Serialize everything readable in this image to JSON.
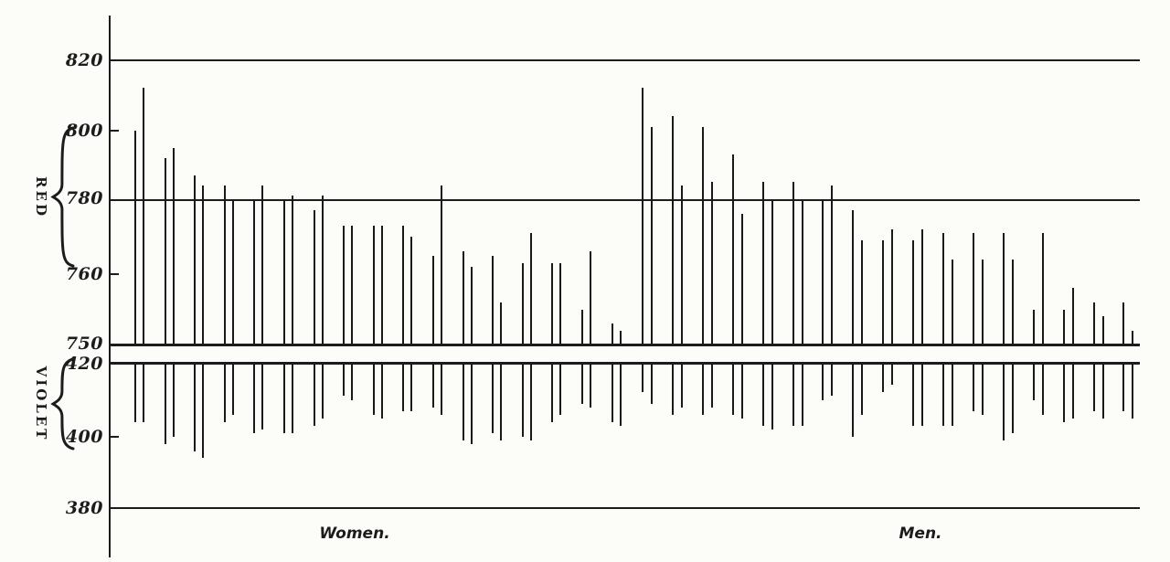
{
  "figure": {
    "background": "#fcfcf9",
    "ink": "#1c1c1c"
  },
  "axis": {
    "upper_tick_labels": [
      "820",
      "800",
      "780",
      "760",
      "750"
    ],
    "lower_tick_labels": [
      "420",
      "400",
      "380"
    ]
  },
  "side_labels": {
    "red": "RED",
    "violet": "VIOLET"
  },
  "group_labels": {
    "women": "Women.",
    "men": "Men."
  },
  "chart_data": {
    "type": "bar",
    "title": "",
    "description": "Individual limits of the visible spectrum: red-end limits plotted upward from a 750 baseline, violet-end limits plotted downward from a 420 baseline, for Women and Men.",
    "upper_panel": {
      "label": "RED",
      "baseline": 750,
      "axis_ticks": [
        820,
        800,
        780,
        760,
        750
      ],
      "full_gridlines": [
        820,
        780,
        750
      ]
    },
    "lower_panel": {
      "label": "VIOLET",
      "baseline": 420,
      "axis_ticks": [
        420,
        400,
        380
      ],
      "full_gridlines": [
        420,
        380
      ]
    },
    "groups": [
      {
        "name": "Women.",
        "red_limits": [
          800,
          812,
          792,
          795,
          787,
          784,
          784,
          780,
          780,
          784,
          780,
          781,
          777,
          781,
          773,
          773,
          773,
          773,
          773,
          770,
          765,
          784,
          766,
          762,
          765,
          756,
          763,
          771,
          763,
          763,
          755,
          766,
          753,
          752
        ],
        "violet_limits": [
          404,
          404,
          398,
          400,
          396,
          394,
          404,
          406,
          401,
          402,
          401,
          401,
          403,
          405,
          411,
          410,
          406,
          405,
          407,
          407,
          408,
          406,
          399,
          398,
          401,
          399,
          400,
          399,
          404,
          406,
          409,
          408,
          404,
          403
        ]
      },
      {
        "name": "Men.",
        "red_limits": [
          812,
          801,
          804,
          784,
          801,
          785,
          793,
          776,
          785,
          780,
          785,
          780,
          780,
          784,
          777,
          769,
          769,
          772,
          769,
          772,
          771,
          764,
          771,
          764,
          771,
          764,
          755,
          771,
          755,
          758,
          756,
          754,
          756,
          752
        ],
        "violet_limits": [
          412,
          409,
          406,
          408,
          406,
          408,
          406,
          405,
          403,
          402,
          403,
          403,
          410,
          411,
          400,
          406,
          412,
          414,
          403,
          403,
          403,
          403,
          407,
          406,
          399,
          401,
          410,
          406,
          404,
          405,
          407,
          405,
          407,
          405
        ]
      }
    ]
  }
}
